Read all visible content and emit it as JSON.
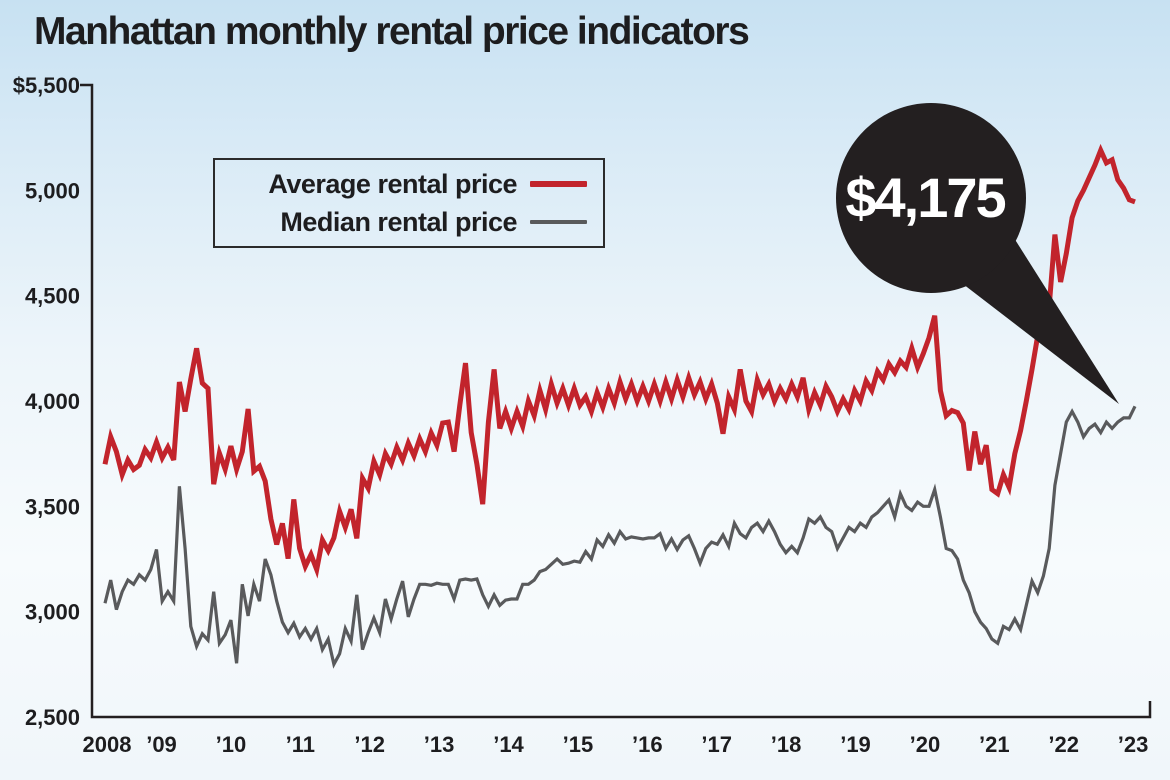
{
  "title": "Manhattan monthly rental price indicators",
  "legend": {
    "items": [
      {
        "label": "Average rental price",
        "color": "#c2242c"
      },
      {
        "label": "Median rental price",
        "color": "#595a5c"
      }
    ]
  },
  "callout": {
    "text": "$4,175",
    "bubble_color": "#231f20",
    "text_color": "#ffffff"
  },
  "chart_data": {
    "type": "line",
    "title": "Manhattan monthly rental price indicators",
    "x_unit": "month",
    "x_range": "Jan 2008 - Jan 2023",
    "x_tick_labels": [
      "2008",
      "’09",
      "’10",
      "’11",
      "’12",
      "’13",
      "’14",
      "’15",
      "’16",
      "’17",
      "’18",
      "’19",
      "’20",
      "’21",
      "’22",
      "’23"
    ],
    "y_tick_labels": [
      "$5,500",
      "5,000",
      "4,500",
      "4,000",
      "3,500",
      "3,000",
      "2,500"
    ],
    "ylim": [
      2500,
      5500
    ],
    "y_step": 500,
    "grid": false,
    "legend_position": "top-left",
    "axis_color": "#231f20",
    "label_color": "#1d1d1f",
    "series": [
      {
        "name": "Median rental price",
        "color": "#595a5c",
        "stroke_width": 3.2,
        "values": [
          3040,
          3150,
          3010,
          3095,
          3150,
          3130,
          3175,
          3150,
          3200,
          3295,
          3050,
          3095,
          3050,
          3595,
          3300,
          2930,
          2835,
          2895,
          2865,
          3095,
          2850,
          2890,
          2960,
          2755,
          3130,
          2980,
          3130,
          3050,
          3250,
          3175,
          3050,
          2950,
          2900,
          2945,
          2880,
          2920,
          2870,
          2920,
          2820,
          2870,
          2750,
          2800,
          2920,
          2860,
          3080,
          2820,
          2900,
          2970,
          2900,
          3060,
          2965,
          3060,
          3145,
          2975,
          3060,
          3130,
          3130,
          3125,
          3135,
          3130,
          3130,
          3060,
          3150,
          3155,
          3150,
          3155,
          3080,
          3025,
          3080,
          3030,
          3055,
          3060,
          3060,
          3130,
          3130,
          3150,
          3190,
          3200,
          3225,
          3250,
          3225,
          3230,
          3240,
          3235,
          3285,
          3250,
          3340,
          3310,
          3365,
          3325,
          3380,
          3345,
          3355,
          3350,
          3345,
          3350,
          3350,
          3370,
          3300,
          3345,
          3295,
          3340,
          3360,
          3300,
          3230,
          3300,
          3330,
          3320,
          3365,
          3310,
          3420,
          3370,
          3350,
          3400,
          3420,
          3380,
          3430,
          3380,
          3320,
          3280,
          3310,
          3280,
          3350,
          3440,
          3420,
          3450,
          3400,
          3380,
          3300,
          3350,
          3400,
          3380,
          3420,
          3400,
          3450,
          3470,
          3500,
          3530,
          3450,
          3560,
          3500,
          3480,
          3520,
          3500,
          3500,
          3580,
          3450,
          3300,
          3290,
          3250,
          3150,
          3090,
          3000,
          2950,
          2920,
          2870,
          2850,
          2930,
          2915,
          2965,
          2915,
          3030,
          3145,
          3090,
          3170,
          3300,
          3600,
          3750,
          3900,
          3950,
          3900,
          3830,
          3870,
          3890,
          3850,
          3900,
          3870,
          3900,
          3920,
          3920,
          3975
        ]
      },
      {
        "name": "Average rental price",
        "color": "#c2242c",
        "stroke_width": 5,
        "values": [
          3700,
          3830,
          3760,
          3650,
          3720,
          3675,
          3695,
          3770,
          3730,
          3805,
          3730,
          3780,
          3720,
          4090,
          3950,
          4105,
          4250,
          4085,
          4060,
          3605,
          3752,
          3676,
          3786,
          3676,
          3760,
          3962,
          3667,
          3690,
          3620,
          3440,
          3319,
          3419,
          3252,
          3533,
          3300,
          3215,
          3271,
          3200,
          3340,
          3290,
          3350,
          3476,
          3400,
          3486,
          3348,
          3633,
          3586,
          3714,
          3650,
          3750,
          3700,
          3780,
          3720,
          3800,
          3740,
          3820,
          3760,
          3848,
          3790,
          3895,
          3900,
          3760,
          3980,
          4180,
          3850,
          3700,
          3510,
          3900,
          4150,
          3870,
          3950,
          3870,
          3950,
          3880,
          4000,
          3930,
          4050,
          3960,
          4080,
          3990,
          4060,
          3980,
          4060,
          3980,
          4020,
          3950,
          4040,
          3970,
          4060,
          3990,
          4090,
          4010,
          4080,
          4000,
          4070,
          4000,
          4080,
          4000,
          4090,
          4010,
          4100,
          4020,
          4110,
          4030,
          4090,
          4010,
          4080,
          3990,
          3845,
          4020,
          3960,
          4150,
          4000,
          3950,
          4100,
          4030,
          4080,
          4000,
          4060,
          4010,
          4080,
          4020,
          4110,
          3960,
          4040,
          3980,
          4070,
          4020,
          3950,
          4010,
          3960,
          4050,
          4000,
          4095,
          4050,
          4140,
          4100,
          4175,
          4135,
          4190,
          4160,
          4250,
          4160,
          4225,
          4300,
          4405,
          4050,
          3930,
          3955,
          3945,
          3895,
          3670,
          3855,
          3700,
          3790,
          3580,
          3560,
          3650,
          3590,
          3750,
          3860,
          4000,
          4150,
          4310,
          4405,
          4450,
          4790,
          4565,
          4700,
          4870,
          4950,
          5000,
          5060,
          5120,
          5190,
          5130,
          5145,
          5050,
          5010,
          4955,
          4945
        ]
      }
    ]
  }
}
